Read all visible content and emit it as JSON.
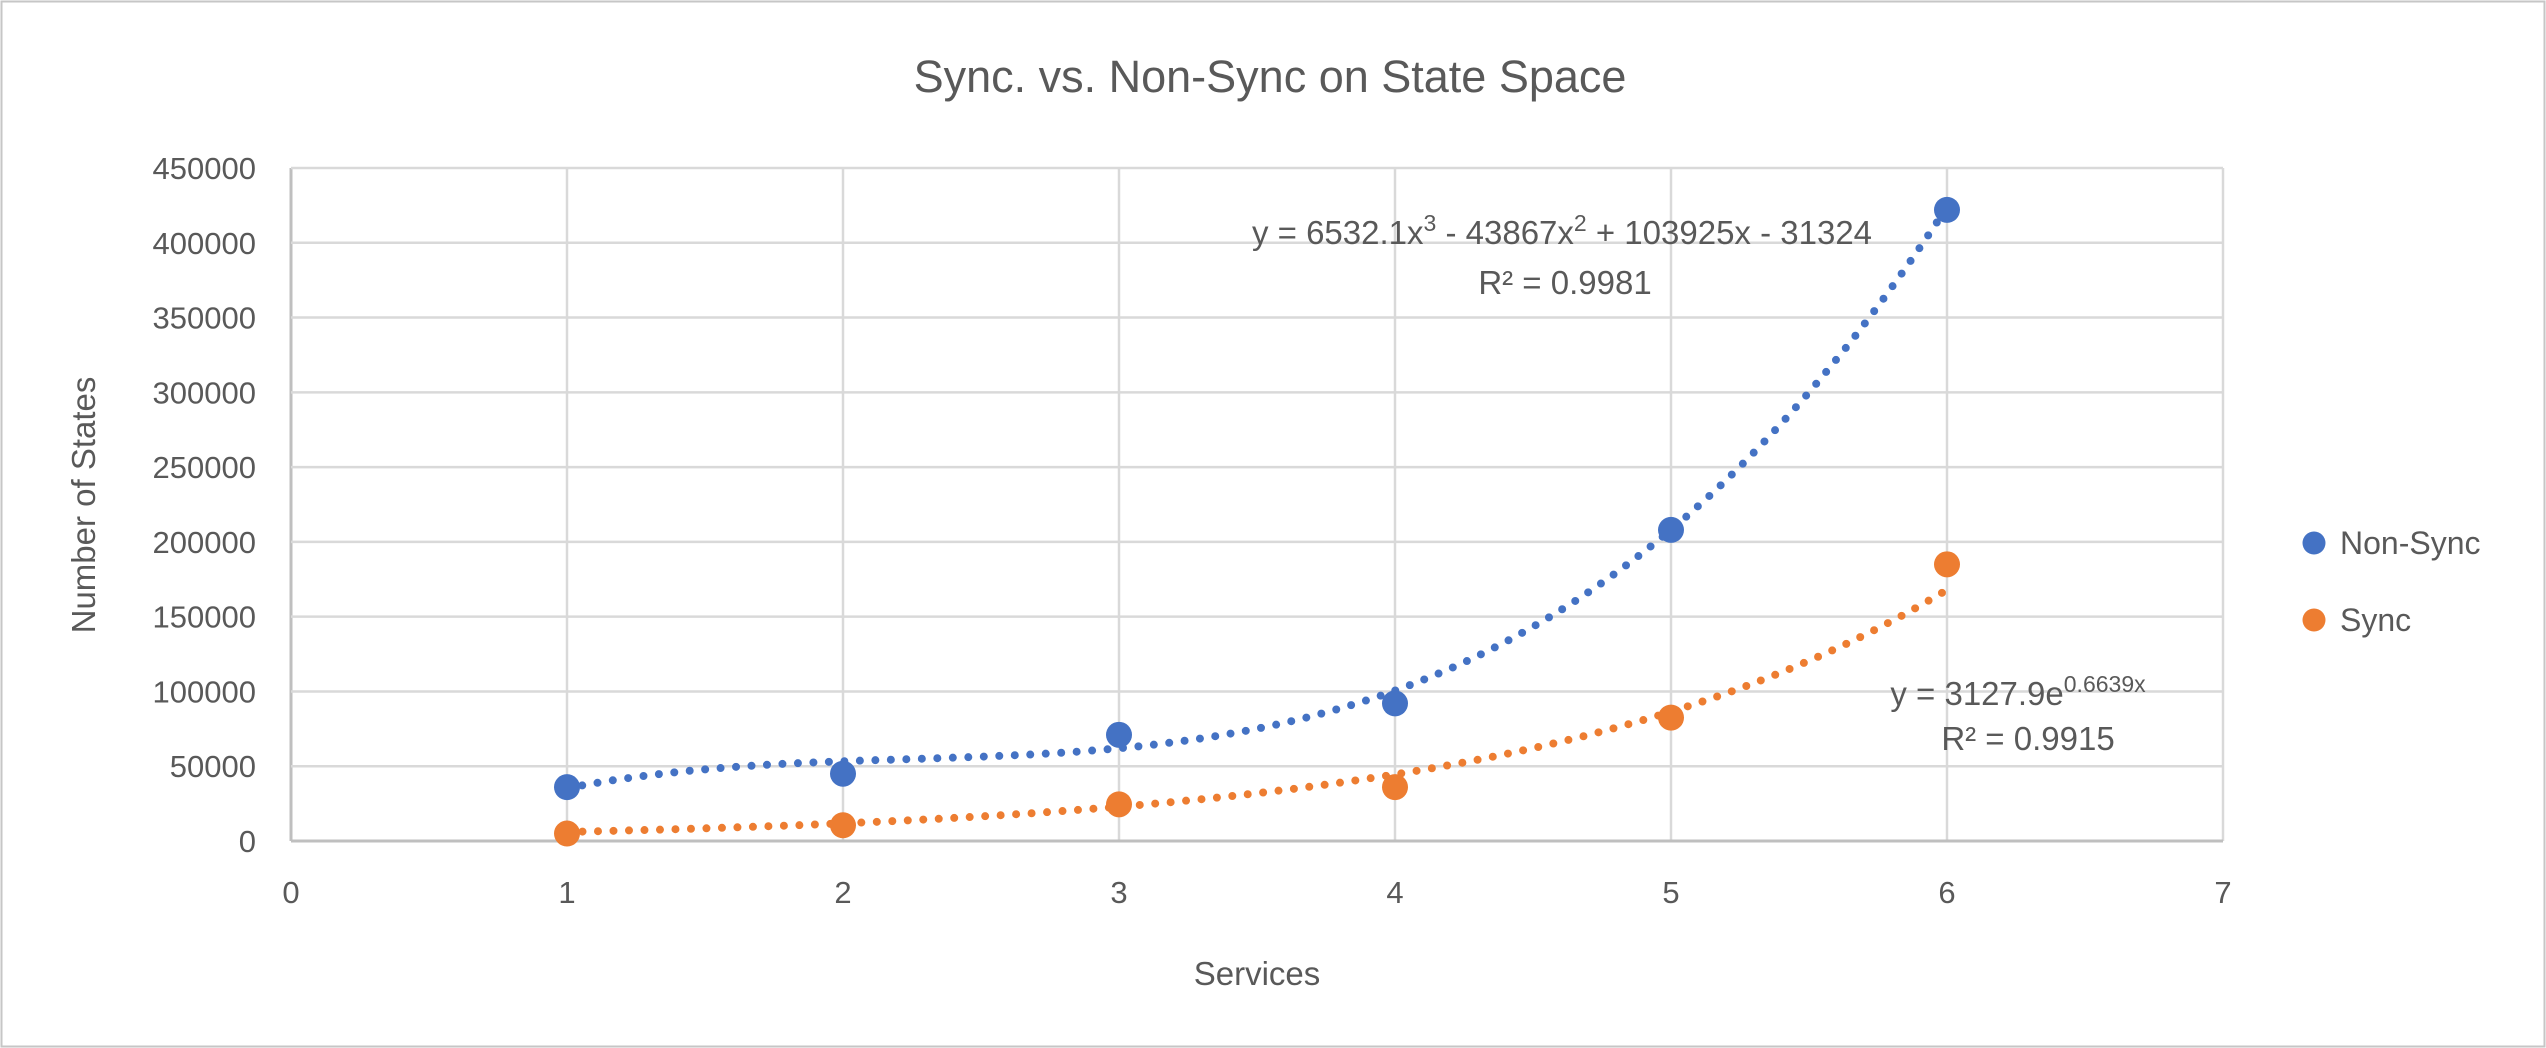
{
  "chart_data": {
    "type": "scatter",
    "title": "Sync. vs. Non-Sync on State Space",
    "xlabel": "Services",
    "ylabel": "Number of States",
    "x_axis": {
      "min": 0,
      "max": 7,
      "step": 1,
      "tick_labels": [
        "0",
        "1",
        "2",
        "3",
        "4",
        "5",
        "6",
        "7"
      ]
    },
    "y_axis": {
      "min": 0,
      "max": 450000,
      "step": 50000,
      "tick_labels": [
        "0",
        "50000",
        "100000",
        "150000",
        "200000",
        "250000",
        "300000",
        "350000",
        "400000",
        "450000"
      ]
    },
    "grid": true,
    "legend_position": "right",
    "x": [
      1,
      2,
      3,
      4,
      5,
      6
    ],
    "series": [
      {
        "name": "Non-Sync",
        "color": "#4472C4",
        "marker": "circle",
        "values": [
          36000,
          45000,
          71000,
          92000,
          208000,
          422000
        ],
        "trendline": {
          "kind": "polynomial",
          "degree": 3,
          "coefficients": [
            6532.1,
            -43867,
            103925,
            -31324
          ],
          "style": "dotted",
          "equation_parts": [
            {
              "text": "y = 6532.1x"
            },
            {
              "text": "3",
              "sup": true
            },
            {
              "text": " - 43867x"
            },
            {
              "text": "2",
              "sup": true
            },
            {
              "text": " + 103925x - 31324"
            }
          ],
          "r2_label": "R² = 0.9981"
        }
      },
      {
        "name": "Sync",
        "color": "#ED7D31",
        "marker": "circle",
        "values": [
          5000,
          10500,
          24500,
          36000,
          82500,
          185000
        ],
        "trendline": {
          "kind": "exponential",
          "a": 3127.9,
          "b": 0.6639,
          "style": "dotted",
          "equation_parts": [
            {
              "text": "y = 3127.9e"
            },
            {
              "text": "0.6639x",
              "sup": true
            }
          ],
          "r2_label": "R² = 0.9915"
        }
      }
    ],
    "colors": {
      "text": "#595959",
      "gridline": "#D9D9D9",
      "axis_line": "#BFBFBF",
      "frame_border": "#C6C6C6",
      "background": "#FFFFFF"
    }
  }
}
